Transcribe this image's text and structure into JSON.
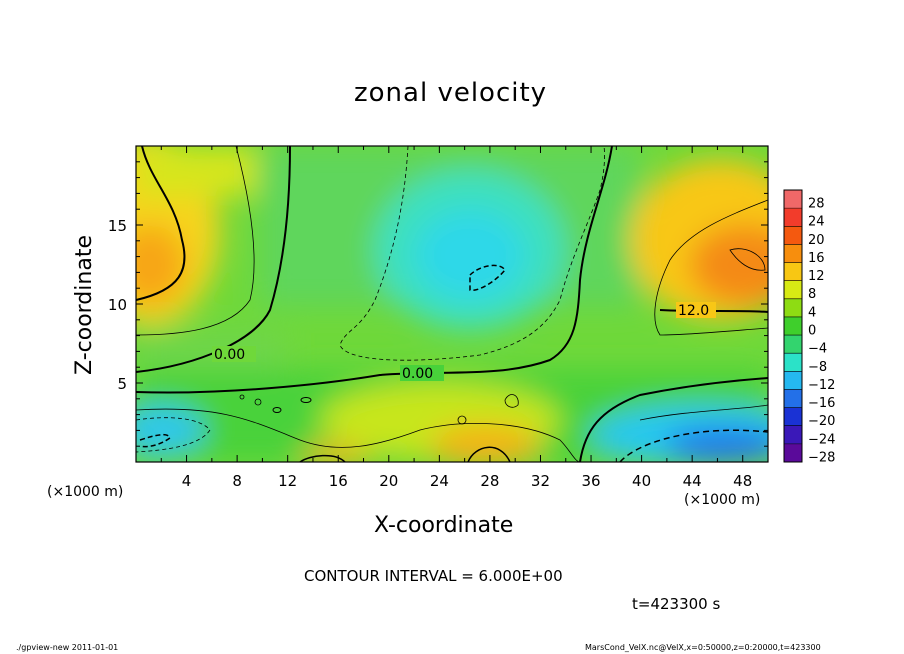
{
  "chart_data": {
    "type": "heatmap",
    "title": "zonal velocity",
    "xlabel": "X-coordinate",
    "ylabel": "Z-coordinate",
    "x_unit": "(×1000 m)",
    "y_unit": "(×1000 m)",
    "xlim": [
      0,
      50
    ],
    "ylim": [
      0,
      20
    ],
    "x_ticks": [
      "4",
      "8",
      "12",
      "16",
      "20",
      "24",
      "28",
      "32",
      "36",
      "40",
      "44",
      "48"
    ],
    "y_ticks": [
      "5",
      "10",
      "15"
    ],
    "colorbar_levels": [
      "28",
      "24",
      "20",
      "16",
      "12",
      "8",
      "4",
      "0",
      "−4",
      "−8",
      "−12",
      "−16",
      "−20",
      "−24",
      "−28"
    ],
    "colorbar_colors": [
      "#f06868",
      "#f23c2b",
      "#f4590f",
      "#f78e0d",
      "#f8c713",
      "#d8ea14",
      "#8edc13",
      "#3fcf2c",
      "#33d46e",
      "#2be2c8",
      "#25b8f0",
      "#2370e8",
      "#1a32d4",
      "#3a18b8",
      "#5a0a9a"
    ],
    "contour_labels": [
      "0.00",
      "0.00",
      "12.0"
    ],
    "contour_interval": "CONTOUR INTERVAL = 6.000E+00",
    "time_label": "t=423300 s",
    "features": [
      {
        "desc": "warm high-velocity region",
        "x": 0,
        "z": 12.5,
        "value": 14
      },
      {
        "desc": "warm high-velocity region",
        "x": 47,
        "z": 13,
        "value": 16
      },
      {
        "desc": "negative core",
        "x": 28,
        "z": 11.5,
        "value": -10
      },
      {
        "desc": "negative core",
        "x": 45,
        "z": 1.2,
        "value": -14
      },
      {
        "desc": "negative core",
        "x": 2,
        "z": 1.2,
        "value": -12
      },
      {
        "desc": "warm near-surface patch",
        "x": 28,
        "z": 1,
        "value": 14
      }
    ]
  },
  "footer": {
    "left": "./gpview-new   2011-01-01",
    "right": "MarsCond_VelX.nc@VelX,x=0:50000,z=0:20000,t=423300"
  }
}
